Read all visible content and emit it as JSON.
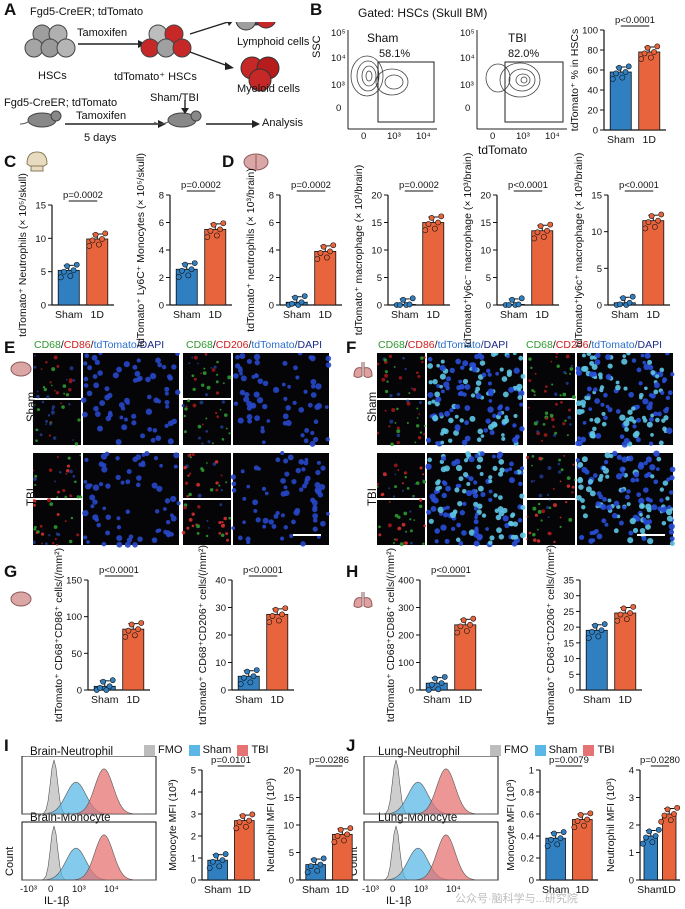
{
  "panels": {
    "A": {
      "letter": "A",
      "top_label": "Fgd5-CreER; tdTomato",
      "hscs": "HSCs",
      "tamoxifen": "Tamoxifen",
      "tdtomato_hscs": "tdTomato⁺ HSCs",
      "lymphoid": "Lymphoid cells",
      "myeloid": "Myeloid cells",
      "bottom_label": "Fgd5-CreER; tdTomato",
      "tamoxifen2": "Tamoxifen",
      "days": "5 days",
      "sham_tbi": "Sham/TBI",
      "analysis": "Analysis"
    },
    "B": {
      "letter": "B",
      "gated": "Gated: HSCs (Skull BM)",
      "ssc": "SSC",
      "xaxis": "tdTomato",
      "sham": "Sham",
      "tbi": "TBI",
      "sham_pct": "58.1%",
      "tbi_pct": "82.0%",
      "yt1": "10⁵",
      "yt2": "10⁴",
      "yt3": "10³",
      "yt4": "0",
      "xt1": "0",
      "xt2": "10³",
      "xt3": "10⁴"
    },
    "C": {
      "letter": "C"
    },
    "D": {
      "letter": "D"
    },
    "E": {
      "letter": "E",
      "stain1": [
        "CD68",
        "/",
        "CD86",
        "/",
        "tdTomato",
        "/DAPI"
      ],
      "stain2": [
        "CD68",
        "/",
        "CD206",
        "/",
        "tdTomato",
        "/DAPI"
      ],
      "row1": "Sham",
      "row2": "TBI"
    },
    "F": {
      "letter": "F",
      "stain1": [
        "CD68",
        "/",
        "CD86",
        "/",
        "tdTomato",
        "/DAPI"
      ],
      "stain2": [
        "CD68",
        "/",
        "CD206",
        "/",
        "tdTomato",
        "/DAPI"
      ],
      "row1": "Sham",
      "row2": "TBI"
    },
    "G": {
      "letter": "G"
    },
    "H": {
      "letter": "H"
    },
    "I": {
      "letter": "I",
      "title1": "Brain-Neutrophil",
      "title2": "Brain-Monocyte",
      "ylabel": "Count",
      "xlabel": "IL-1β",
      "xticks": [
        "-10³",
        "0",
        "10³",
        "10⁴"
      ],
      "legend": [
        "FMO",
        "Sham",
        "TBI"
      ]
    },
    "J": {
      "letter": "J",
      "title1": "Lung-Neutrophil",
      "title2": "Lung-Monocyte",
      "ylabel": "Count",
      "xlabel": "IL-1β",
      "xticks": [
        "-10³",
        "0",
        "10³",
        "10⁴"
      ],
      "legend": [
        "FMO",
        "Sham",
        "TBI"
      ]
    },
    "watermark": "公众号·脑科学与...研究院"
  },
  "colors": {
    "sham": "#2f7fc1",
    "tbi": "#e8643c",
    "fmo": "#bdbdbd",
    "sham_hist": "#5bb8e6",
    "tbi_hist": "#e57373",
    "cd68": "#2e9a2e",
    "cd86": "#d11a1a",
    "tdtomato": "#2b6fd0"
  },
  "chart_data": [
    {
      "id": "B",
      "type": "bar",
      "categories": [
        "Sham",
        "1D"
      ],
      "values": [
        58,
        78
      ],
      "ylabel": "tdTomato⁺ % in HSCs",
      "ylim": [
        0,
        100
      ],
      "yticks": [
        0,
        20,
        40,
        60,
        80,
        100
      ],
      "pvalue": "p<0.0001"
    },
    {
      "id": "C1",
      "type": "bar",
      "categories": [
        "Sham",
        "1D"
      ],
      "values": [
        5.2,
        9.9
      ],
      "ylabel": "tdTomato⁺ Neutrophils (× 10⁵/skull)",
      "ylim": [
        0,
        15
      ],
      "yticks": [
        0,
        5,
        10,
        15
      ],
      "pvalue": "p=0.0002"
    },
    {
      "id": "C2",
      "type": "bar",
      "categories": [
        "Sham",
        "1D"
      ],
      "values": [
        2.6,
        5.5
      ],
      "ylabel": "tdTomato⁺ Ly6C⁺ Monocytes (× 10⁵/skull)",
      "ylim": [
        0,
        8
      ],
      "yticks": [
        0,
        2,
        4,
        6,
        8
      ],
      "pvalue": "p=0.0002"
    },
    {
      "id": "D1",
      "type": "bar",
      "categories": [
        "Sham",
        "1D"
      ],
      "values": [
        0.2,
        3.9
      ],
      "ylabel": "tdTomato⁺ neutrophils (× 10³/brain)",
      "ylim": [
        0,
        8
      ],
      "yticks": [
        0,
        2,
        4,
        6,
        8
      ],
      "pvalue": "p=0.0002"
    },
    {
      "id": "D2",
      "type": "bar",
      "categories": [
        "Sham",
        "1D"
      ],
      "values": [
        0.1,
        15.0
      ],
      "ylabel": "tdTomato⁺ macrophage (× 10³/brain)",
      "ylim": [
        0,
        20
      ],
      "yticks": [
        0,
        5,
        10,
        15,
        20
      ],
      "pvalue": "p=0.0002"
    },
    {
      "id": "D3",
      "type": "bar",
      "categories": [
        "Sham",
        "1D"
      ],
      "values": [
        0.1,
        13.5
      ],
      "ylabel": "tdTomato⁺ly6c⁻ macrophage (× 10³/brain)",
      "ylim": [
        0,
        20
      ],
      "yticks": [
        0,
        5,
        10,
        15,
        20
      ],
      "pvalue": "p<0.0001"
    },
    {
      "id": "D4",
      "type": "bar",
      "categories": [
        "Sham",
        "1D"
      ],
      "values": [
        0.3,
        11.5
      ],
      "ylabel": "tdTomato⁺ly6c⁺ macrophage (× 10³/brain)",
      "ylim": [
        0,
        15
      ],
      "yticks": [
        0,
        5,
        10,
        15
      ],
      "pvalue": "p<0.0001"
    },
    {
      "id": "G1",
      "type": "bar",
      "categories": [
        "Sham",
        "1D"
      ],
      "values": [
        5,
        83
      ],
      "ylabel": "tdTomato⁺ CD68⁺CD86⁺ cells/(/mm²)",
      "ylim": [
        0,
        150
      ],
      "yticks": [
        0,
        50,
        100,
        150
      ],
      "pvalue": "p<0.0001"
    },
    {
      "id": "G2",
      "type": "bar",
      "categories": [
        "Sham",
        "1D"
      ],
      "values": [
        5,
        27.5
      ],
      "ylabel": "tdTomato⁺ CD68⁺CD206⁺ cells/(/mm²)",
      "ylim": [
        0,
        40
      ],
      "yticks": [
        0,
        10,
        20,
        30,
        40
      ],
      "pvalue": "p<0.0001"
    },
    {
      "id": "H1",
      "type": "bar",
      "categories": [
        "Sham",
        "1D"
      ],
      "values": [
        25,
        237
      ],
      "ylabel": "tdTomato⁺ CD68⁺CD86⁺ cells/(/mm²)",
      "ylim": [
        0,
        400
      ],
      "yticks": [
        0,
        100,
        200,
        300,
        400
      ],
      "pvalue": "p<0.0001"
    },
    {
      "id": "H2",
      "type": "bar",
      "categories": [
        "Sham",
        "1D"
      ],
      "values": [
        19,
        24.5
      ],
      "ylabel": "tdTomato⁺ CD68⁺CD206⁺ cells/(/mm²)",
      "ylim": [
        0,
        35
      ],
      "yticks": [
        0,
        5,
        10,
        15,
        20,
        25,
        30,
        35
      ],
      "pvalue": ""
    },
    {
      "id": "I1",
      "type": "bar",
      "categories": [
        "Sham",
        "1D"
      ],
      "values": [
        0.9,
        2.7
      ],
      "ylabel": "Monocyte MFI (10³)",
      "ylim": [
        0,
        5
      ],
      "yticks": [
        0,
        1,
        2,
        3,
        4,
        5
      ],
      "pvalue": "p=0.0101"
    },
    {
      "id": "I2",
      "type": "bar",
      "categories": [
        "Sham",
        "1D"
      ],
      "values": [
        2.8,
        8.3
      ],
      "ylabel": "Neutrophil MFI (10³)",
      "ylim": [
        0,
        20
      ],
      "yticks": [
        0,
        5,
        10,
        15,
        20
      ],
      "pvalue": "p=0.0286"
    },
    {
      "id": "J1",
      "type": "bar",
      "categories": [
        "Sham",
        "1D"
      ],
      "values": [
        0.38,
        0.55
      ],
      "ylabel": "Monocyte MFI (10³)",
      "ylim": [
        0,
        1.0
      ],
      "yticks": [
        0,
        0.2,
        0.4,
        0.6,
        0.8,
        1.0
      ],
      "pvalue": "p=0.0079"
    },
    {
      "id": "J2",
      "type": "bar",
      "categories": [
        "Sham",
        "1D"
      ],
      "values": [
        1.6,
        2.4
      ],
      "ylabel": "Neutrophil MFI (10³)",
      "ylim": [
        0,
        4
      ],
      "yticks": [
        0,
        1,
        2,
        3,
        4
      ],
      "pvalue": "p=0.0280"
    }
  ]
}
